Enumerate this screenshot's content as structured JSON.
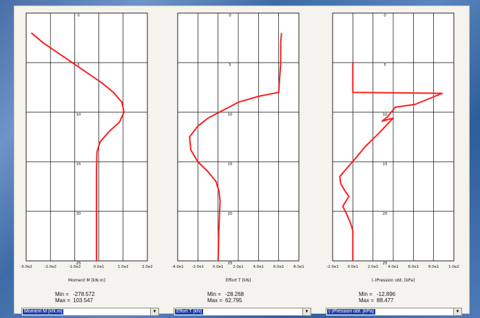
{
  "charts": [
    {
      "id": "moment",
      "xlabel": "Moment M [kN.m]",
      "xticks": [
        "-3.0e2",
        "-2.0e2",
        "-1.0e2",
        "0.0e1",
        "1.0e2",
        "2.0e2"
      ],
      "yticks": [
        "0",
        "5",
        "10",
        "15",
        "20",
        "25"
      ],
      "min_label": "Min =",
      "min_value": "-278.572",
      "max_label": "Max =",
      "max_value": "103.547",
      "selector": "Moment M [kN.m]"
    },
    {
      "id": "effort",
      "xlabel": "Effort T [kN]",
      "xticks": [
        "-4.0e1",
        "-2.0e1",
        "0.0e1",
        "2.0e1",
        "4.0e1",
        "6.0e1",
        "8.0e1"
      ],
      "yticks": [
        "0",
        "5",
        "10",
        "15",
        "20",
        "25"
      ],
      "min_label": "Min =",
      "min_value": "-28.268",
      "max_label": "Max =",
      "max_value": "62.795",
      "selector": "Effort T [kN]"
    },
    {
      "id": "pression",
      "xlabel": "(-)Pression obt. [kPa]",
      "xticks": [
        "-2.0e1",
        "0.0e1",
        "2.0e1",
        "4.0e1",
        "6.0e1",
        "8.0e1",
        "1.0e2"
      ],
      "yticks": [
        "0",
        "5",
        "10",
        "15",
        "20",
        "25"
      ],
      "min_label": "Min =",
      "min_value": "-12.896",
      "max_label": "Max =",
      "max_value": "88.477",
      "selector": "(-)Pression obt. [kPa]"
    }
  ],
  "chart_data": [
    {
      "type": "line",
      "xlabel": "Moment M [kN.m]",
      "xlim": [
        -300,
        200
      ],
      "ylim": [
        0,
        25
      ],
      "y_inverted": true,
      "grid": true,
      "series": [
        {
          "x": [
            -278.572,
            -230,
            -170,
            -110,
            -50,
            10,
            60,
            95,
            103.547,
            85,
            40,
            5,
            -8,
            -10,
            -10,
            -10,
            -10
          ],
          "y": [
            2,
            3,
            4,
            5,
            6,
            7,
            8,
            9,
            10,
            11,
            12,
            13,
            14,
            16,
            19,
            22,
            25
          ]
        }
      ]
    },
    {
      "type": "line",
      "xlabel": "Effort T [kN]",
      "xlim": [
        -40,
        80
      ],
      "ylim": [
        0,
        25
      ],
      "y_inverted": true,
      "grid": true,
      "series": [
        {
          "x": [
            62.795,
            62,
            62,
            60,
            40,
            20,
            5,
            -10,
            -20,
            -28.268,
            -27,
            -20,
            -10,
            -2,
            1,
            2,
            1.5,
            0.8,
            0.3,
            0
          ],
          "y": [
            2,
            3,
            5,
            8,
            8.4,
            9,
            9.8,
            10.6,
            11.4,
            12.5,
            13.8,
            15,
            16,
            17,
            18,
            19,
            20,
            22,
            24,
            25
          ]
        }
      ]
    },
    {
      "type": "line",
      "xlabel": "(-)Pression obt. [kPa]",
      "xlim": [
        -20,
        100
      ],
      "ylim": [
        0,
        25
      ],
      "y_inverted": true,
      "grid": true,
      "series": [
        {
          "x": [
            0,
            0,
            0,
            0,
            88.477,
            62,
            42,
            34,
            29,
            40,
            25,
            12,
            4,
            -2,
            -8,
            -12.896,
            -12,
            -8,
            -4,
            -10,
            -6,
            -3,
            -1,
            0,
            0
          ],
          "y": [
            5,
            6,
            7,
            8,
            8.1,
            9.2,
            9.5,
            10.5,
            10.9,
            10.6,
            12.2,
            13.5,
            14.5,
            15.2,
            15.9,
            16.5,
            17.2,
            17.9,
            18.5,
            19.5,
            20.3,
            21,
            21.6,
            22,
            25
          ]
        }
      ]
    }
  ]
}
